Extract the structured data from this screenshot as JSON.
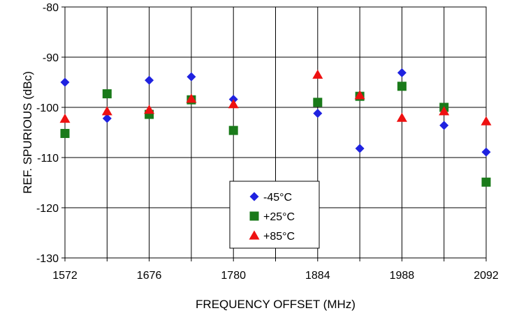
{
  "chart_data": {
    "type": "scatter",
    "title": "",
    "xlabel": "FREQUENCY OFFSET (MHz)",
    "ylabel": "REF. SPURIOUS (dBc)",
    "xlim": [
      1572,
      2092
    ],
    "ylim": [
      -130,
      -80
    ],
    "xticks": [
      1572,
      1676,
      1780,
      1884,
      1988,
      2092
    ],
    "yticks": [
      -130,
      -120,
      -110,
      -100,
      -90,
      -80
    ],
    "x_gridlines": [
      1572,
      1624,
      1676,
      1728,
      1780,
      1832,
      1884,
      1936,
      1988,
      2040,
      2092
    ],
    "grid": true,
    "legend_position": "bottom-center",
    "x": [
      1572,
      1624,
      1676,
      1728,
      1780,
      1884,
      1936,
      1988,
      2040,
      2092
    ],
    "series": [
      {
        "name": "-45°C",
        "marker": "diamond",
        "color": "#1f22e0",
        "values": [
          -95,
          -102.2,
          -94.6,
          -93.9,
          -98.4,
          -101.2,
          -108.2,
          -93.1,
          -103.6,
          -108.9
        ]
      },
      {
        "name": "+25°C",
        "marker": "square",
        "color": "#1a7a1a",
        "values": [
          -105.2,
          -97.3,
          -101.4,
          -98.5,
          -104.6,
          -99,
          -97.8,
          -95.8,
          -100,
          -114.9
        ]
      },
      {
        "name": "+85°C",
        "marker": "triangle",
        "color": "#ee1111",
        "values": [
          -102.3,
          -100.8,
          -100.5,
          -98.3,
          -99.4,
          -93.5,
          -97.6,
          -102.1,
          -100.8,
          -102.8
        ]
      }
    ]
  }
}
